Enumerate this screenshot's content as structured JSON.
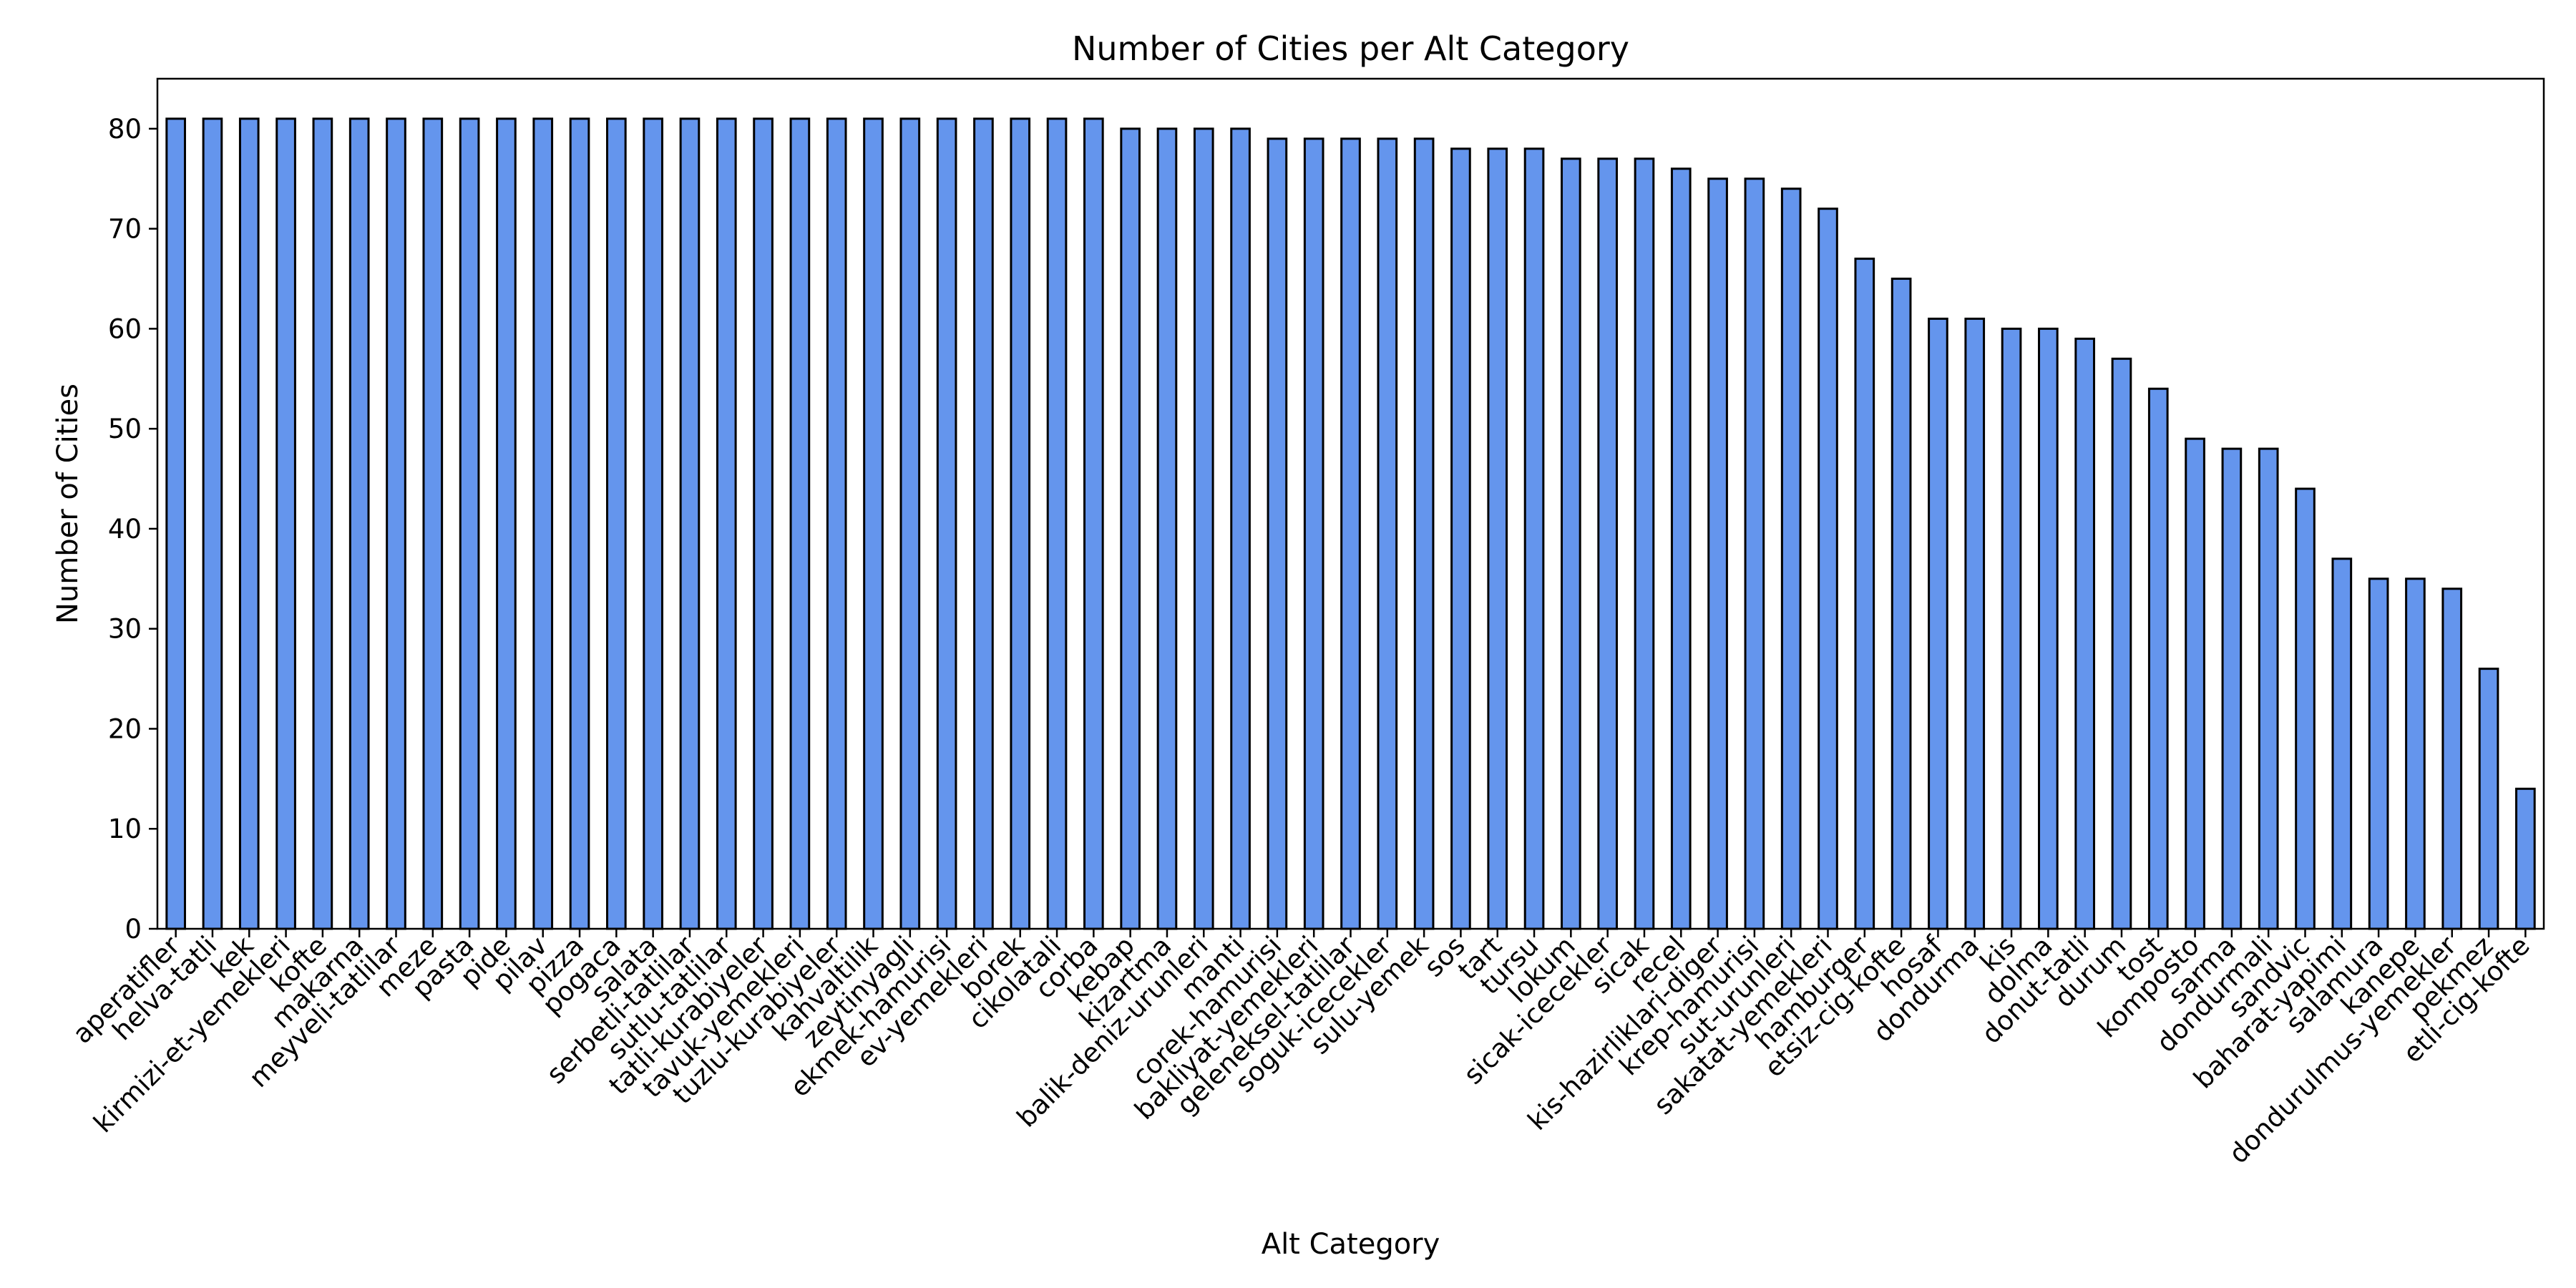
{
  "chart_data": {
    "type": "bar",
    "title": "Number of Cities per Alt Category",
    "xlabel": "Alt Category",
    "ylabel": "Number of Cities",
    "ylim": [
      0,
      85
    ],
    "yticks": [
      0,
      10,
      20,
      30,
      40,
      50,
      60,
      70,
      80
    ],
    "grid": false,
    "legend": "none",
    "bar_color": "#6495ED",
    "edge_color": "#000000",
    "categories": [
      "aperatifler",
      "helva-tatli",
      "kek",
      "kirmizi-et-yemekleri",
      "kofte",
      "makarna",
      "meyveli-tatlilar",
      "meze",
      "pasta",
      "pide",
      "pilav",
      "pizza",
      "pogaca",
      "salata",
      "serbetli-tatlilar",
      "sutlu-tatlilar",
      "tatli-kurabiyeler",
      "tavuk-yemekleri",
      "tuzlu-kurabiyeler",
      "kahvaltilik",
      "zeytinyagli",
      "ekmek-hamurisi",
      "ev-yemekleri",
      "borek",
      "cikolatali",
      "corba",
      "kebap",
      "kizartma",
      "balik-deniz-urunleri",
      "manti",
      "corek-hamurisi",
      "bakliyat-yemekleri",
      "geleneksel-tatlilar",
      "soguk-icecekler",
      "sulu-yemek",
      "sos",
      "tart",
      "tursu",
      "lokum",
      "sicak-icecekler",
      "sicak",
      "recel",
      "kis-hazirliklari-diger",
      "krep-hamurisi",
      "sut-urunleri",
      "sakatat-yemekleri",
      "hamburger",
      "etsiz-cig-kofte",
      "hosaf",
      "dondurma",
      "kis",
      "dolma",
      "donut-tatli",
      "durum",
      "tost",
      "komposto",
      "sarma",
      "dondurmali",
      "sandvic",
      "baharat-yapimi",
      "salamura",
      "kanepe",
      "dondurulmus-yemekler",
      "pekmez",
      "etli-cig-kofte"
    ],
    "values": [
      81,
      81,
      81,
      81,
      81,
      81,
      81,
      81,
      81,
      81,
      81,
      81,
      81,
      81,
      81,
      81,
      81,
      81,
      81,
      81,
      81,
      81,
      81,
      81,
      81,
      81,
      80,
      80,
      80,
      80,
      79,
      79,
      79,
      79,
      79,
      78,
      78,
      78,
      77,
      77,
      77,
      76,
      75,
      75,
      74,
      72,
      67,
      65,
      61,
      61,
      60,
      60,
      59,
      57,
      54,
      49,
      48,
      48,
      44,
      37,
      35,
      35,
      34,
      26,
      14
    ]
  }
}
